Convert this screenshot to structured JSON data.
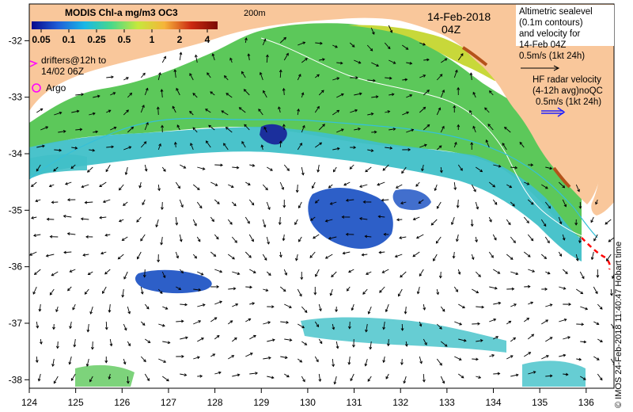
{
  "map": {
    "lon_range": [
      124,
      136.6
    ],
    "lat_range": [
      -38.15,
      -31.35
    ],
    "lon_ticks": [
      124,
      125,
      126,
      127,
      128,
      129,
      130,
      131,
      132,
      133,
      134,
      135,
      136
    ],
    "lat_ticks": [
      -32,
      -33,
      -34,
      -35,
      -36,
      -37,
      -38
    ],
    "colors": {
      "land": "#f9c79b",
      "ocean_nodata": "#ffffff",
      "chl_green": "#5cc85a",
      "chl_cyan": "#40c0c8",
      "chl_blue": "#2d5fc8",
      "chl_dark_blue": "#1b2f9c",
      "chl_yellow": "#d6dc36",
      "contour": "#ffffff",
      "contour_200m": "#35c0d8",
      "radar_arrow": "#2020ff",
      "drifter": "#ff00ff",
      "hf_boundary": "#ff0000"
    },
    "contour_200m_label": "200m"
  },
  "colorbar": {
    "title": "MODIS Chl-a mg/m3 OC3",
    "tick_labels": [
      "0.05",
      "0.1",
      "0.25",
      "0.5",
      "1",
      "2",
      "4"
    ],
    "colors": [
      "#08088c",
      "#1f5fd8",
      "#19b8e6",
      "#49d88a",
      "#c6e83c",
      "#f6b43a",
      "#cc2a12",
      "#7a0a04"
    ]
  },
  "legend": {
    "drifters_text_1": "drifters@12h to",
    "drifters_text_2": "14/02 06Z",
    "argo_text": "Argo"
  },
  "date": {
    "day": "14-Feb-2018",
    "time": "04Z"
  },
  "altimetry": {
    "line1": "Altimetric sealevel",
    "line2": "(0.1m contours)",
    "line3": "and velocity for",
    "line4": "14-Feb 04Z",
    "scale": "0.5m/s (1kt 24h)"
  },
  "hf_radar": {
    "line1": "HF radar velocity",
    "line2": "(4-12h avg)noQC",
    "scale": "0.5m/s (1kt 24h)"
  },
  "credit": "© IMOS 24-Feb-2018 11:40:47 Hobart time"
}
